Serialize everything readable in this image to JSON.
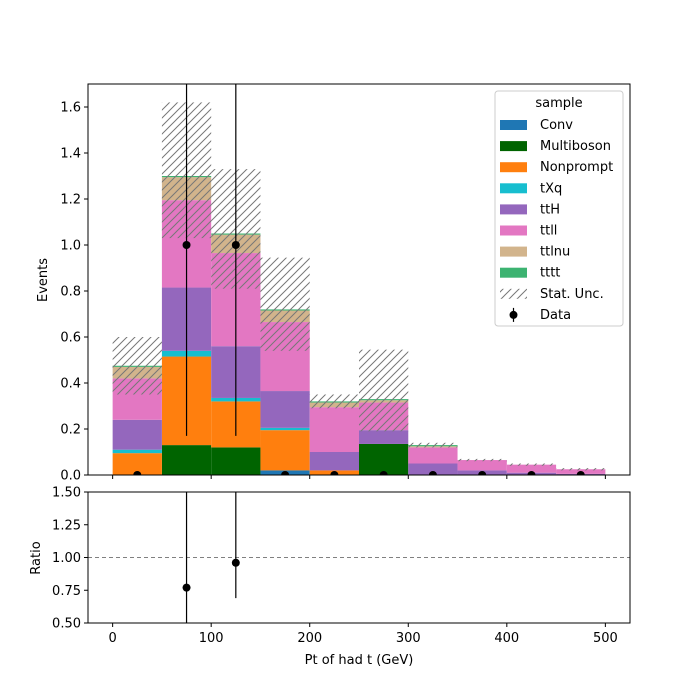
{
  "chart_data": [
    {
      "type": "stacked-histogram",
      "title": "",
      "xlabel": "",
      "ylabel": "Events",
      "xlim": [
        -25,
        525
      ],
      "ylim": [
        0,
        1.7
      ],
      "yticks": [
        "0.0",
        "0.2",
        "0.4",
        "0.6",
        "0.8",
        "1.0",
        "1.2",
        "1.4",
        "1.6"
      ],
      "ytick_values": [
        0,
        0.2,
        0.4,
        0.6,
        0.8,
        1.0,
        1.2,
        1.4,
        1.6
      ],
      "bin_edges": [
        0,
        50,
        100,
        150,
        200,
        250,
        300,
        350,
        400,
        450,
        500
      ],
      "series": [
        {
          "name": "Conv",
          "color": "#1f77b4",
          "values": [
            0.0,
            0.0,
            0.0,
            0.02,
            0.0,
            0.0,
            0.0,
            0.0,
            0.0,
            0.0
          ]
        },
        {
          "name": "Multiboson",
          "color": "#006400",
          "values": [
            0.0,
            0.13,
            0.12,
            0.0,
            0.0,
            0.135,
            0.0,
            0.0,
            0.0,
            0.0
          ]
        },
        {
          "name": "Nonprompt",
          "color": "#ff7f0e",
          "values": [
            0.095,
            0.385,
            0.2,
            0.175,
            0.02,
            0.0,
            0.0,
            0.0,
            0.0,
            0.0
          ]
        },
        {
          "name": "tXq",
          "color": "#17becf",
          "values": [
            0.015,
            0.025,
            0.015,
            0.01,
            0.0,
            0.0,
            0.0,
            0.0,
            0.0,
            0.0
          ]
        },
        {
          "name": "ttH",
          "color": "#9467bd",
          "values": [
            0.13,
            0.275,
            0.225,
            0.16,
            0.08,
            0.06,
            0.05,
            0.02,
            0.01,
            0.005
          ]
        },
        {
          "name": "ttll",
          "color": "#e377c2",
          "values": [
            0.18,
            0.38,
            0.405,
            0.3,
            0.195,
            0.12,
            0.07,
            0.045,
            0.035,
            0.02
          ]
        },
        {
          "name": "ttlnu",
          "color": "#d2b48c",
          "values": [
            0.05,
            0.1,
            0.08,
            0.05,
            0.02,
            0.01,
            0.005,
            0.0,
            0.0,
            0.0
          ]
        },
        {
          "name": "tttt",
          "color": "#3cb371",
          "values": [
            0.005,
            0.005,
            0.005,
            0.005,
            0.005,
            0.005,
            0.005,
            0.0,
            0.0,
            0.0
          ]
        }
      ],
      "stat_unc": {
        "name": "Stat. Unc.",
        "low": [
          0.35,
          1.03,
          0.81,
          0.54,
          0.29,
          0.19,
          0.12,
          0.06,
          0.04,
          0.02
        ],
        "high": [
          0.6,
          1.62,
          1.33,
          0.945,
          0.35,
          0.545,
          0.14,
          0.07,
          0.05,
          0.03
        ]
      },
      "data_points": {
        "name": "Data",
        "x": [
          25,
          75,
          125,
          175,
          225,
          275,
          325,
          375,
          425,
          475
        ],
        "y": [
          0,
          1,
          1,
          0,
          0,
          0,
          0,
          0,
          0,
          0
        ],
        "yerr_low": [
          0,
          0.83,
          0.83,
          0,
          0,
          0,
          0,
          0,
          0,
          0
        ],
        "yerr_high": [
          0,
          2.3,
          2.3,
          0,
          0,
          0,
          0,
          0,
          0,
          0
        ]
      },
      "legend": {
        "title": "sample",
        "placement": "top-right"
      }
    },
    {
      "type": "scatter",
      "title": "",
      "xlabel": "Pt of had t (GeV)",
      "ylabel": "Ratio",
      "xlim": [
        -25,
        525
      ],
      "ylim": [
        0.5,
        1.5
      ],
      "xticks": [
        "0",
        "100",
        "200",
        "300",
        "400",
        "500"
      ],
      "xtick_values": [
        0,
        100,
        200,
        300,
        400,
        500
      ],
      "yticks": [
        "0.50",
        "0.75",
        "1.00",
        "1.25",
        "1.50"
      ],
      "ytick_values": [
        0.5,
        0.75,
        1.0,
        1.25,
        1.5
      ],
      "reference_line": 1.0,
      "points": {
        "x": [
          75,
          125
        ],
        "y": [
          0.77,
          0.96
        ],
        "yerr_low": [
          0.27,
          0.27
        ],
        "yerr_high": [
          1.5,
          1.5
        ]
      }
    }
  ]
}
